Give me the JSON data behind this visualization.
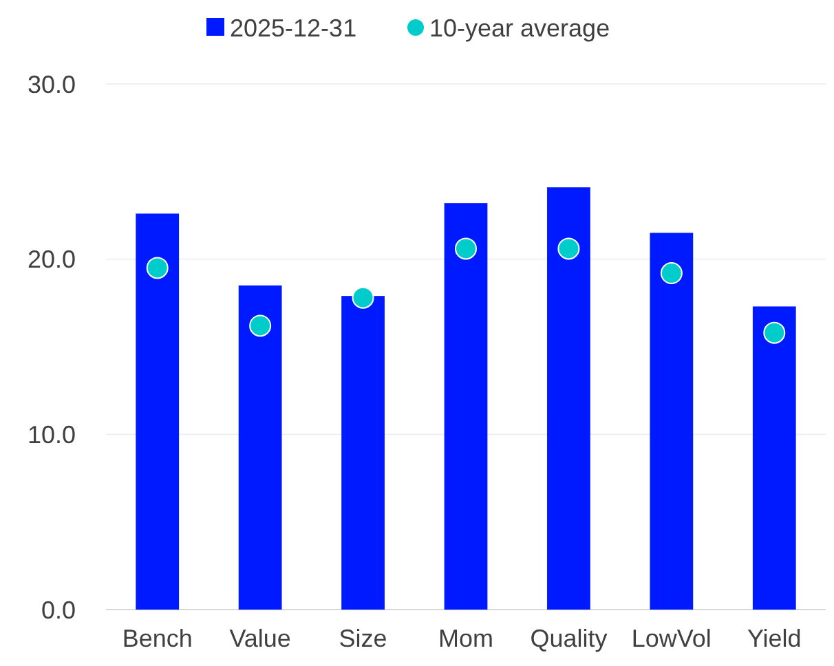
{
  "chart_data": {
    "type": "bar",
    "categories": [
      "Bench",
      "Value",
      "Size",
      "Mom",
      "Quality",
      "LowVol",
      "Yield"
    ],
    "series": [
      {
        "name": "2025-12-31",
        "color": "#001aff",
        "values": [
          22.6,
          18.5,
          17.9,
          23.2,
          24.1,
          21.5,
          17.3
        ]
      },
      {
        "name": "10-year average",
        "type": "scatter",
        "color": "#00cccc",
        "values": [
          19.5,
          16.2,
          17.8,
          20.6,
          20.6,
          19.2,
          15.8
        ]
      }
    ],
    "ylim": [
      0,
      30
    ],
    "yticks": [
      {
        "value": 0,
        "label": "0.0"
      },
      {
        "value": 10,
        "label": "10.0"
      },
      {
        "value": 20,
        "label": "20.0"
      },
      {
        "value": 30,
        "label": "30.0"
      }
    ],
    "grid": "y",
    "legend": "top",
    "marker": "circle"
  }
}
